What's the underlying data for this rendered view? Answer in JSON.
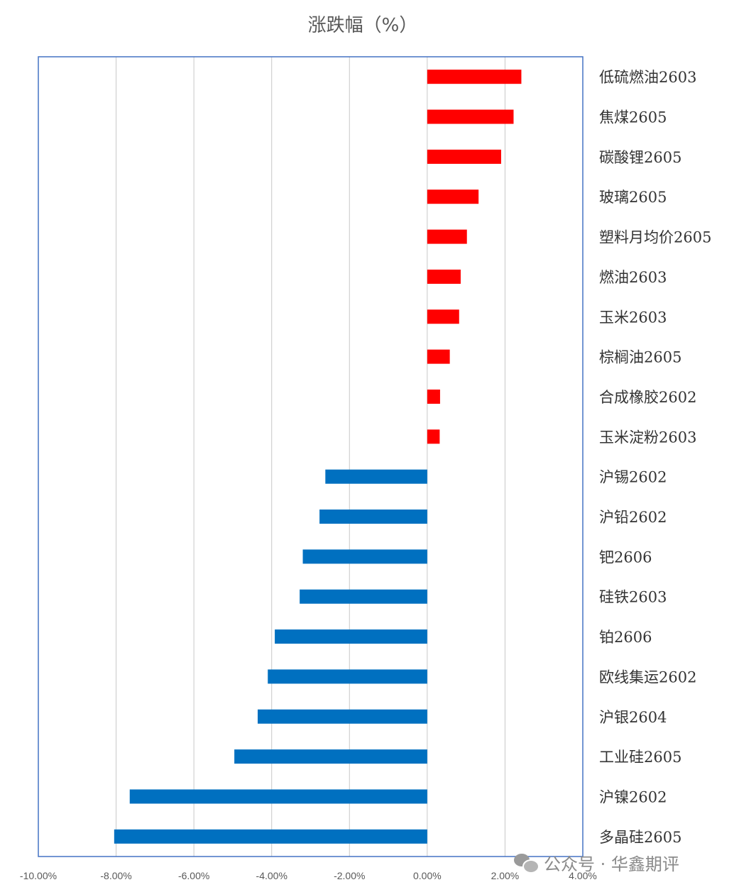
{
  "chart_data": {
    "type": "bar",
    "orientation": "horizontal",
    "title": "涨跌幅（%）",
    "categories": [
      "低硫燃油2603",
      "焦煤2605",
      "碳酸锂2605",
      "玻璃2605",
      "塑料月均价2605",
      "燃油2603",
      "玉米2603",
      "棕榈油2605",
      "合成橡胶2602",
      "玉米淀粉2603",
      "沪锡2602",
      "沪铅2602",
      "钯2606",
      "硅铁2603",
      "铂2606",
      "欧线集运2602",
      "沪银2604",
      "工业硅2605",
      "沪镍2602",
      "多晶硅2605"
    ],
    "values": [
      2.42,
      2.22,
      1.9,
      1.32,
      1.02,
      0.86,
      0.82,
      0.58,
      0.33,
      0.32,
      -2.62,
      -2.77,
      -3.2,
      -3.28,
      -3.92,
      -4.1,
      -4.36,
      -4.96,
      -7.65,
      -8.05
    ],
    "xlim": [
      -10,
      4
    ],
    "ticks": [
      -10,
      -8,
      -6,
      -4,
      -2,
      0,
      2,
      4
    ],
    "tick_labels": [
      "-10.00%",
      "-8.00%",
      "-6.00%",
      "-4.00%",
      "-2.00%",
      "0.00%",
      "2.00%",
      "4.00%"
    ],
    "positive_color": "#ff0000",
    "negative_color": "#0070c0",
    "grid": "vertical",
    "category_axis_side": "right"
  },
  "watermark": {
    "icon": "wechat-icon",
    "text": "公众号 · 华鑫期评"
  }
}
